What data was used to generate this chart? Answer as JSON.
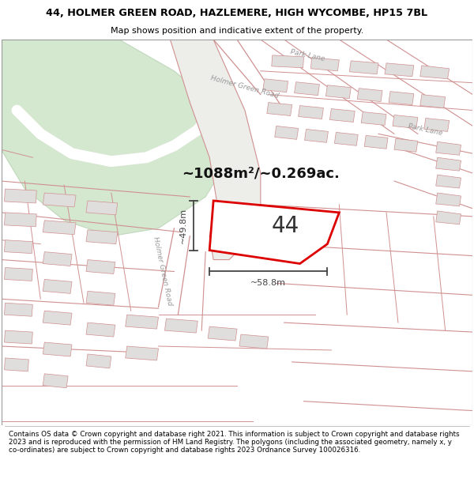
{
  "title_line1": "44, HOLMER GREEN ROAD, HAZLEMERE, HIGH WYCOMBE, HP15 7BL",
  "title_line2": "Map shows position and indicative extent of the property.",
  "footer": "Contains OS data © Crown copyright and database right 2021. This information is subject to Crown copyright and database rights 2023 and is reproduced with the permission of HM Land Registry. The polygons (including the associated geometry, namely x, y co-ordinates) are subject to Crown copyright and database rights 2023 Ordnance Survey 100026316.",
  "map_bg": "#f5f4f0",
  "road_line_color": "#d09090",
  "road_fill": "#e8e5e0",
  "park_color": "#d4e8d0",
  "park_edge": "#c0d8bc",
  "property_color": "#dd0000",
  "property_fill": "#ffffff",
  "area_text": "~1088m²/~0.269ac.",
  "dim_h": "~49.8m",
  "dim_w": "~58.8m",
  "label": "44",
  "road_label_diag": "Holmer Green Road",
  "park_label1": "Park Lane",
  "park_label2": "Park Lane",
  "holmer_label_top": "Holmer Green Road",
  "building_fill": "#e0dedd",
  "building_edge": "#d09090",
  "dim_color": "#444444",
  "label_color": "#888888",
  "white_road": "#ffffff"
}
